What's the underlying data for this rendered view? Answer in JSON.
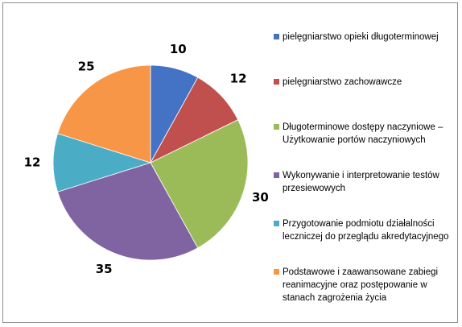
{
  "chart_data": {
    "type": "pie",
    "title": "",
    "categories": [
      "pielęgniarstwo opieki długoterminowej",
      "pielęgniarstwo zachowawcze",
      "Długoterminowe dostępy naczyniowe –\nUżytkowanie portów naczyniowych",
      "Wykonywanie i interpretowanie testów\nprzesiewowych",
      "Przygotowanie podmiotu działalności\nleczniczej do przeglądu akredytacyjnego",
      "Podstawowe i zaawansowane zabiegi\nreanimacyjne oraz postępowanie w\nstanach zagrożenia życia"
    ],
    "values": [
      10,
      12,
      30,
      35,
      12,
      25
    ],
    "colors": [
      "#4472c4",
      "#c0504d",
      "#9bbb59",
      "#8064a2",
      "#4bacc6",
      "#f79646"
    ],
    "legend_position": "right",
    "grid": false
  }
}
